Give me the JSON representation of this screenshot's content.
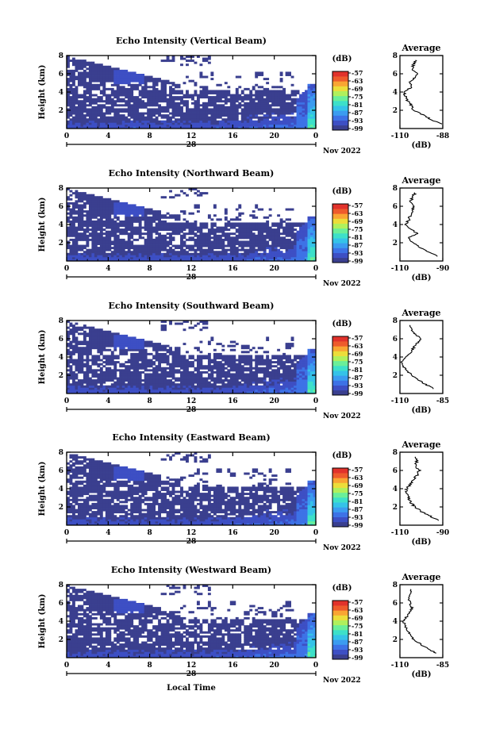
{
  "figure": {
    "bottom_xlabel": "Local Time",
    "colorbar_unit": "(dB)",
    "average_title": "Average",
    "average_xlabel": "(dB)",
    "date_label": "Nov 2022",
    "day_label": "28"
  },
  "colorbar_ticks": [
    "-57",
    "-63",
    "-69",
    "-75",
    "-81",
    "-87",
    "-93",
    "-99"
  ],
  "colors": {
    "palette": [
      "#3a3f8f",
      "#3d4fc4",
      "#3d72e6",
      "#3b9cf0",
      "#35c3e8",
      "#3de0c9",
      "#6aef99",
      "#b0f05c",
      "#ecdd3a",
      "#f9a533",
      "#ee5b2c",
      "#e1322b"
    ],
    "frame": "#000000"
  },
  "chart_data": [
    {
      "type": "heatmap",
      "title": "Echo Intensity (Vertical Beam)",
      "ylabel": "Height (km)",
      "x_ticks": [
        "0",
        "4",
        "8",
        "12",
        "16",
        "20",
        "0"
      ],
      "xlim": [
        0,
        24
      ],
      "y_ticks": [
        "2",
        "4",
        "6",
        "8"
      ],
      "ylim": [
        0,
        8
      ],
      "colorbar_range_db": [
        -99,
        -57
      ],
      "average_profile": {
        "type": "line",
        "title": "Average",
        "xlabel": "(dB)",
        "x_ticks": [
          "-110",
          "-88"
        ],
        "xlim": [
          -110,
          -88
        ],
        "y_ticks": [
          "2",
          "4",
          "6",
          "8"
        ],
        "ylim": [
          0,
          8
        ],
        "height_km": [
          0.5,
          1,
          1.5,
          2,
          2.5,
          3,
          3.5,
          4,
          4.5,
          5,
          5.5,
          6,
          6.5,
          7,
          7.5
        ],
        "db": [
          -89,
          -94,
          -98,
          -103,
          -104,
          -106,
          -107,
          -108,
          -104,
          -105,
          -103,
          -101,
          -104,
          -103,
          -102
        ]
      }
    },
    {
      "type": "heatmap",
      "title": "Echo Intensity (Northward Beam)",
      "ylabel": "Height (km)",
      "x_ticks": [
        "0",
        "4",
        "8",
        "12",
        "16",
        "20",
        "0"
      ],
      "xlim": [
        0,
        24
      ],
      "y_ticks": [
        "2",
        "4",
        "6",
        "8"
      ],
      "ylim": [
        0,
        8
      ],
      "colorbar_range_db": [
        -99,
        -57
      ],
      "average_profile": {
        "type": "line",
        "title": "Average",
        "xlabel": "(dB)",
        "x_ticks": [
          "-110",
          "-90"
        ],
        "xlim": [
          -110,
          -90
        ],
        "y_ticks": [
          "2",
          "4",
          "6",
          "8"
        ],
        "ylim": [
          0,
          8
        ],
        "height_km": [
          0.5,
          1,
          1.5,
          2,
          2.5,
          3,
          3.5,
          4,
          4.5,
          5,
          5.5,
          6,
          6.5,
          7,
          7.5
        ],
        "db": [
          -92,
          -97,
          -101,
          -104,
          -106,
          -102,
          -105,
          -107,
          -106,
          -105,
          -104,
          -104,
          -105,
          -104,
          -103
        ]
      }
    },
    {
      "type": "heatmap",
      "title": "Echo Intensity (Southward Beam)",
      "ylabel": "Height (km)",
      "x_ticks": [
        "0",
        "4",
        "8",
        "12",
        "16",
        "20",
        "0"
      ],
      "xlim": [
        0,
        24
      ],
      "y_ticks": [
        "2",
        "4",
        "6",
        "8"
      ],
      "ylim": [
        0,
        8
      ],
      "colorbar_range_db": [
        -99,
        -57
      ],
      "average_profile": {
        "type": "line",
        "title": "Average",
        "xlabel": "(dB)",
        "x_ticks": [
          "-110",
          "-85"
        ],
        "xlim": [
          -110,
          -85
        ],
        "y_ticks": [
          "2",
          "4",
          "6",
          "8"
        ],
        "ylim": [
          0,
          8
        ],
        "height_km": [
          0.5,
          1,
          1.5,
          2,
          2.5,
          3,
          3.5,
          4,
          4.5,
          5,
          5.5,
          6,
          6.5,
          7,
          7.5
        ],
        "db": [
          -90,
          -95,
          -99,
          -103,
          -106,
          -108,
          -109,
          -107,
          -104,
          -102,
          -100,
          -98,
          -101,
          -103,
          -104
        ]
      }
    },
    {
      "type": "heatmap",
      "title": "Echo Intensity (Eastward Beam)",
      "ylabel": "Height (km)",
      "x_ticks": [
        "0",
        "4",
        "8",
        "12",
        "16",
        "20",
        "0"
      ],
      "xlim": [
        0,
        24
      ],
      "y_ticks": [
        "2",
        "4",
        "6",
        "8"
      ],
      "ylim": [
        0,
        8
      ],
      "colorbar_range_db": [
        -99,
        -57
      ],
      "average_profile": {
        "type": "line",
        "title": "Average",
        "xlabel": "(dB)",
        "x_ticks": [
          "-110",
          "-90"
        ],
        "xlim": [
          -110,
          -90
        ],
        "y_ticks": [
          "2",
          "4",
          "6",
          "8"
        ],
        "ylim": [
          0,
          8
        ],
        "height_km": [
          0.5,
          1,
          1.5,
          2,
          2.5,
          3,
          3.5,
          4,
          4.5,
          5,
          5.5,
          6,
          6.5,
          7,
          7.5
        ],
        "db": [
          -92,
          -96,
          -100,
          -103,
          -105,
          -106,
          -107,
          -107,
          -105,
          -104,
          -102,
          -101,
          -103,
          -102,
          -103
        ]
      }
    },
    {
      "type": "heatmap",
      "title": "Echo Intensity (Westward Beam)",
      "ylabel": "Height (km)",
      "x_ticks": [
        "0",
        "4",
        "8",
        "12",
        "16",
        "20",
        "0"
      ],
      "xlim": [
        0,
        24
      ],
      "y_ticks": [
        "2",
        "4",
        "6",
        "8"
      ],
      "ylim": [
        0,
        8
      ],
      "colorbar_range_db": [
        -99,
        -57
      ],
      "average_profile": {
        "type": "line",
        "title": "Average",
        "xlabel": "(dB)",
        "x_ticks": [
          "-110",
          "-85"
        ],
        "xlim": [
          -110,
          -85
        ],
        "y_ticks": [
          "2",
          "4",
          "6",
          "8"
        ],
        "ylim": [
          0,
          8
        ],
        "height_km": [
          0.5,
          1,
          1.5,
          2,
          2.5,
          3,
          3.5,
          4,
          4.5,
          5,
          5.5,
          6,
          6.5,
          7,
          7.5
        ],
        "db": [
          -89,
          -94,
          -98,
          -102,
          -104,
          -106,
          -107,
          -108,
          -106,
          -104,
          -103,
          -104,
          -105,
          -104,
          -104
        ]
      }
    }
  ]
}
